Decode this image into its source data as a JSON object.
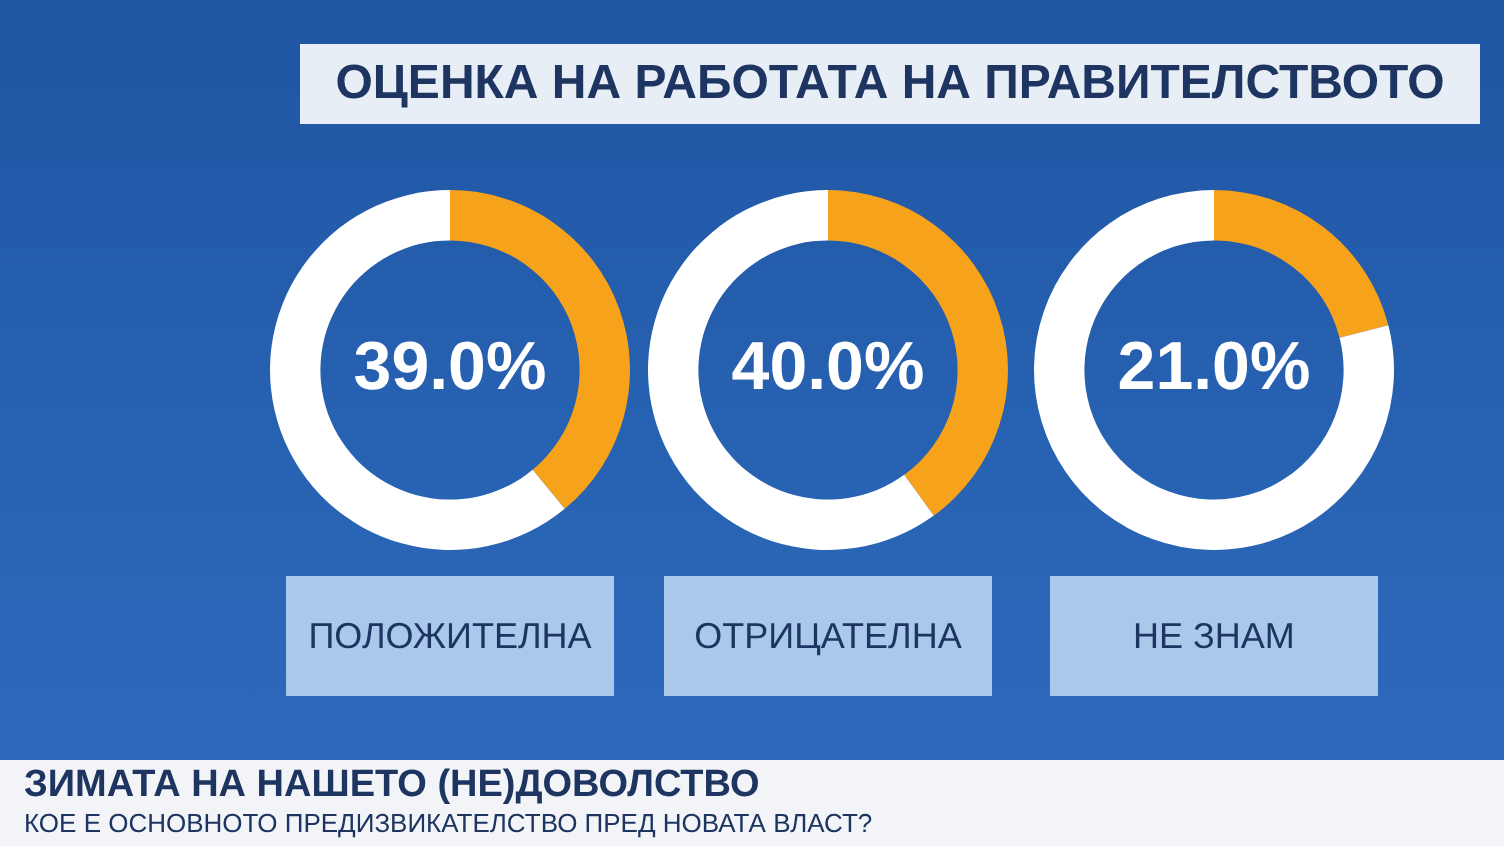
{
  "chart_data": [
    {
      "type": "donut",
      "title": "ОЦЕНКА НА РАБОТАТА НА ПРАВИТЕЛСТВОТО",
      "xlabel": "ПОЛОЖИТЕЛНА",
      "categories": [
        null,
        null
      ],
      "values": [
        39.0,
        61.0
      ],
      "colors": [
        "#f7a21b",
        "#ffffff"
      ],
      "value_labels": [
        "39.0%",
        null
      ],
      "annotations": [
        "ЗИМАТА НА НАШЕТО (НЕ)ДОВОЛСТВО",
        "КОЕ Е ОСНОВНОТО ПРЕДИЗВИКАТЕЛСТВО ПРЕД НОВАТА ВЛАСТ?"
      ]
    },
    {
      "type": "donut",
      "xlabel": "ОТРИЦАТЕЛНА",
      "categories": [
        null,
        null
      ],
      "values": [
        40.0,
        60.0
      ],
      "colors": [
        "#f7a21b",
        "#ffffff"
      ],
      "value_labels": [
        "40.0%",
        null
      ]
    },
    {
      "type": "donut",
      "xlabel": "НЕ ЗНАМ",
      "categories": [
        null,
        null
      ],
      "values": [
        21.0,
        79.0
      ],
      "colors": [
        "#f7a21b",
        "#ffffff"
      ],
      "value_labels": [
        "21.0%",
        null
      ]
    }
  ]
}
